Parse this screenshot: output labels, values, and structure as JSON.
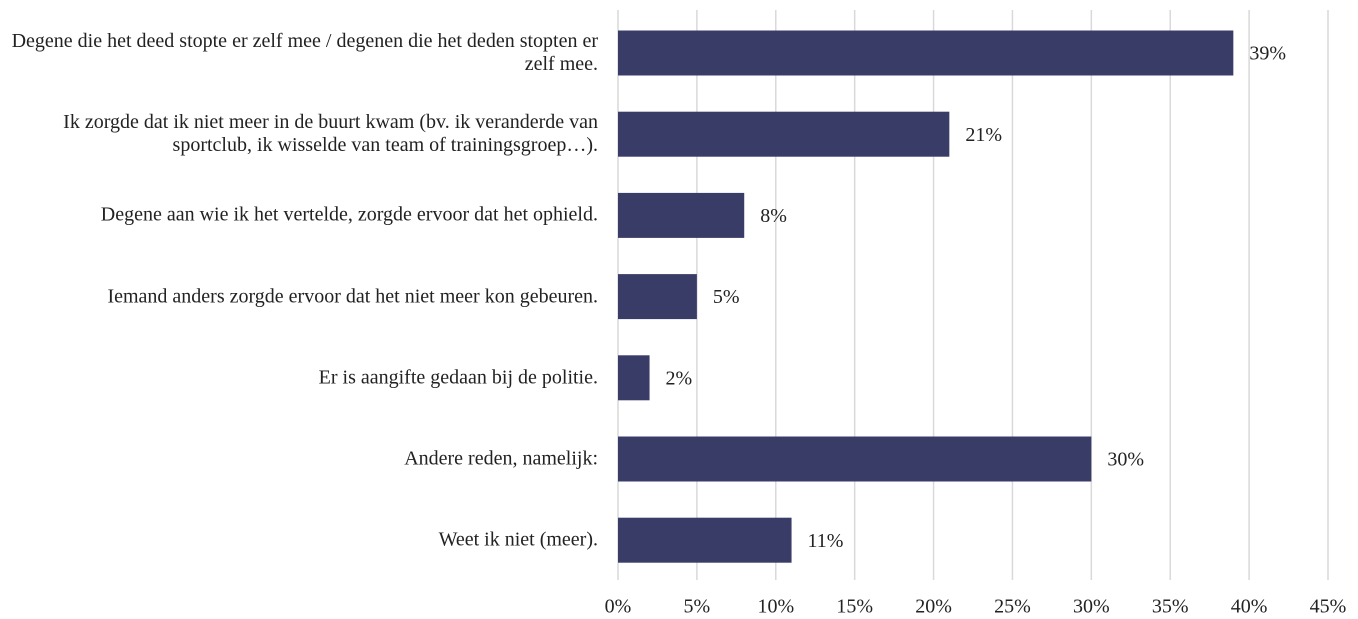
{
  "chart_data": {
    "type": "barh",
    "categories": [
      "Degene die het deed stopte er zelf mee / degenen die het deden stopten er zelf mee.",
      "Ik zorgde dat ik niet meer in de buurt kwam (bv. ik veranderde van sportclub, ik wisselde van team of trainingsgroep…).",
      "Degene aan wie ik het vertelde, zorgde ervoor dat het ophield.",
      "Iemand anders zorgde ervoor dat het niet meer kon gebeuren.",
      "Er is aangifte gedaan bij de politie.",
      "Andere reden, namelijk:",
      "Weet ik niet (meer)."
    ],
    "values": [
      39,
      21,
      8,
      5,
      2,
      30,
      11
    ],
    "value_labels": [
      "39%",
      "21%",
      "8%",
      "5%",
      "2%",
      "30%",
      "11%"
    ],
    "color": "#3a3c68",
    "xlim": [
      0,
      45
    ],
    "xticks": [
      {
        "value": 0,
        "label": "0%"
      },
      {
        "value": 5,
        "label": "5%"
      },
      {
        "value": 10,
        "label": "10%"
      },
      {
        "value": 15,
        "label": "15%"
      },
      {
        "value": 20,
        "label": "20%"
      },
      {
        "value": 25,
        "label": "25%"
      },
      {
        "value": 30,
        "label": "30%"
      },
      {
        "value": 35,
        "label": "35%"
      },
      {
        "value": 40,
        "label": "40%"
      },
      {
        "value": 45,
        "label": "45%"
      }
    ],
    "grid": true
  }
}
